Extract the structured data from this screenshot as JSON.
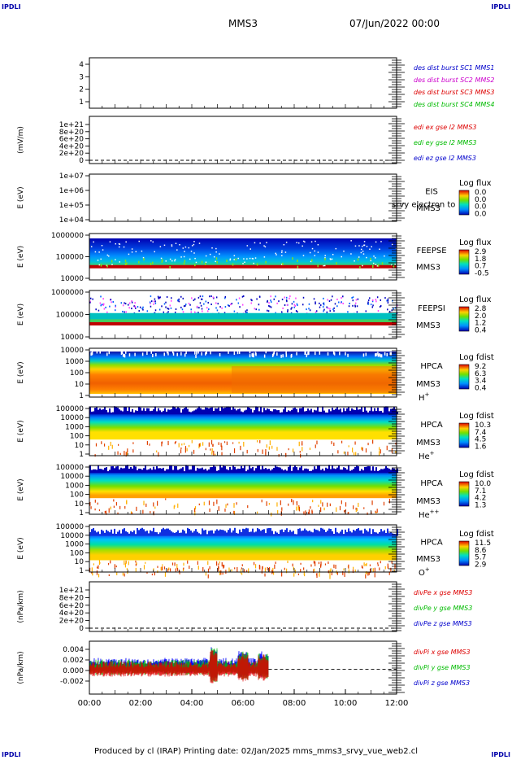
{
  "header": {
    "corner_tl": "IPDLI",
    "corner_tr": "IPDLI",
    "corner_bl": "IPDLI",
    "corner_br": "IPDLI",
    "mission": "MMS3",
    "date": "07/Jun/2022 00:00"
  },
  "footer": {
    "text": "Produced by cl (IRAP)   Printing date: 02/Jan/2025   mms_mms3_srvy_vue_web2.cl"
  },
  "chart_data": [
    {
      "type": "line",
      "panel": "des-dist",
      "ylabel": "",
      "yticks": [
        "1",
        "2",
        "3",
        "4"
      ],
      "ylim": [
        0.6,
        4.4
      ],
      "legend": [
        {
          "text": "des dist burst SC1 MMS1",
          "color": "#0000cc"
        },
        {
          "text": "des dist burst SC2 MMS2",
          "color": "#cc00cc"
        },
        {
          "text": "des dist burst SC3 MMS3",
          "color": "#dd0000"
        },
        {
          "text": "des dist burst SC4 MMS4",
          "color": "#00bb00"
        }
      ]
    },
    {
      "type": "line",
      "panel": "edi",
      "ylabel": "(mV/m)",
      "yticks": [
        "0",
        "2e+20",
        "4e+20",
        "6e+20",
        "8e+20",
        "1e+21"
      ],
      "ylim": [
        0,
        1.1e+21
      ],
      "zero_line": true,
      "legend": [
        {
          "text": "edi ex gse l2 MMS3",
          "color": "#dd0000"
        },
        {
          "text": "edi ey gse l2 MMS3",
          "color": "#00bb00"
        },
        {
          "text": "edi ez gse l2 MMS3",
          "color": "#0000cc"
        }
      ]
    },
    {
      "type": "heatmap",
      "panel": "eis",
      "ylabel": "E (eV)",
      "yticks": [
        "1e+04",
        "1e+05",
        "1e+06",
        "1e+07"
      ],
      "log": true,
      "labels": [
        "EIS",
        "MMS3"
      ],
      "overlay_label": "srvy electron to",
      "colorbar": {
        "title": "Log flux",
        "ticks": [
          "0.0",
          "0.0",
          "0.0",
          "0.0"
        ]
      }
    },
    {
      "type": "heatmap",
      "panel": "feeps-e",
      "ylabel": "E (eV)",
      "yticks": [
        "10000",
        "100000",
        "1000000"
      ],
      "log": true,
      "labels": [
        "FEEPSE",
        "MMS3"
      ],
      "colorbar": {
        "title": "Log flux",
        "ticks": [
          "2.9",
          "1.8",
          "0.7",
          "-0.5"
        ]
      }
    },
    {
      "type": "heatmap",
      "panel": "feeps-i",
      "ylabel": "E (eV)",
      "yticks": [
        "10000",
        "100000",
        "1000000"
      ],
      "log": true,
      "labels": [
        "FEEPSI",
        "MMS3"
      ],
      "colorbar": {
        "title": "Log flux",
        "ticks": [
          "2.8",
          "2.0",
          "1.2",
          "0.4"
        ]
      }
    },
    {
      "type": "heatmap",
      "panel": "hpca-h",
      "ylabel": "E (eV)",
      "yticks": [
        "1",
        "10",
        "100",
        "1000",
        "10000"
      ],
      "log": true,
      "labels": [
        "HPCA",
        "MMS3"
      ],
      "species": "H",
      "species_sup": "+",
      "colorbar": {
        "title": "Log fdist",
        "ticks": [
          "9.2",
          "6.3",
          "3.4",
          "0.4"
        ]
      }
    },
    {
      "type": "heatmap",
      "panel": "hpca-he",
      "ylabel": "E (eV)",
      "yticks": [
        "1",
        "10",
        "100",
        "1000",
        "10000",
        "100000"
      ],
      "log": true,
      "labels": [
        "HPCA",
        "MMS3"
      ],
      "species": "He",
      "species_sup": "+",
      "colorbar": {
        "title": "Log fdist",
        "ticks": [
          "10.3",
          "7.4",
          "4.5",
          "1.6"
        ]
      }
    },
    {
      "type": "heatmap",
      "panel": "hpca-hepp",
      "ylabel": "E (eV)",
      "yticks": [
        "1",
        "10",
        "100",
        "1000",
        "10000",
        "100000"
      ],
      "log": true,
      "labels": [
        "HPCA",
        "MMS3"
      ],
      "species": "He",
      "species_sup": "++",
      "colorbar": {
        "title": "Log fdist",
        "ticks": [
          "10.0",
          "7.1",
          "4.2",
          "1.3"
        ]
      }
    },
    {
      "type": "heatmap",
      "panel": "hpca-o",
      "ylabel": "E (eV)",
      "yticks": [
        "1",
        "10",
        "100",
        "1000",
        "10000",
        "100000"
      ],
      "log": true,
      "labels": [
        "HPCA",
        "MMS3"
      ],
      "species": "O",
      "species_sup": "+",
      "colorbar": {
        "title": "Log fdist",
        "ticks": [
          "11.5",
          "8.6",
          "5.7",
          "2.9"
        ]
      }
    },
    {
      "type": "line",
      "panel": "divpe",
      "ylabel": "(nPa/km)",
      "yticks": [
        "0",
        "2e+20",
        "4e+20",
        "6e+20",
        "8e+20",
        "1e+21"
      ],
      "ylim": [
        0,
        1.1e+21
      ],
      "zero_line": true,
      "legend": [
        {
          "text": "divPe x gse MMS3",
          "color": "#dd0000"
        },
        {
          "text": "divPe y gse MMS3",
          "color": "#00bb00"
        },
        {
          "text": "divPe z gse MMS3",
          "color": "#0000cc"
        }
      ]
    },
    {
      "type": "line",
      "panel": "divpi",
      "ylabel": "(nPa/km)",
      "yticks": [
        "-0.002",
        "0.000",
        "0.002",
        "0.004"
      ],
      "ylim": [
        -0.0035,
        0.005
      ],
      "zero_line": true,
      "legend": [
        {
          "text": "divPi x gse MMS3",
          "color": "#dd0000"
        },
        {
          "text": "divPi y gse MMS3",
          "color": "#00bb00"
        },
        {
          "text": "divPi z gse MMS3",
          "color": "#0000cc"
        }
      ],
      "data_end_hour": 7.0
    }
  ],
  "xaxis": {
    "ticks": [
      "00:00",
      "02:00",
      "04:00",
      "06:00",
      "08:00",
      "10:00",
      "12:00"
    ],
    "xlim_hours": [
      0,
      12
    ]
  }
}
